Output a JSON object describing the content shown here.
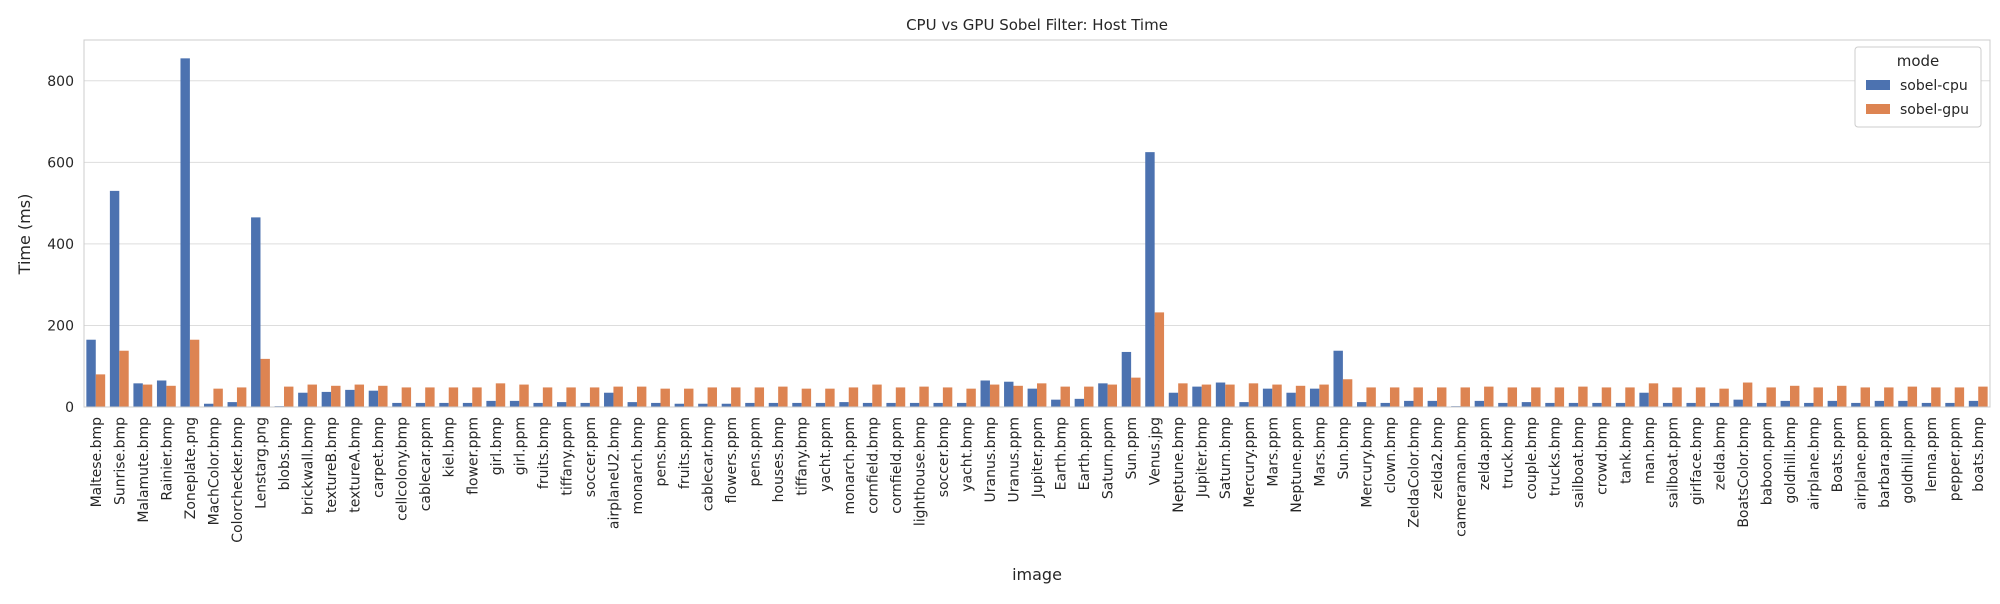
{
  "chart_data": {
    "type": "bar",
    "title": "CPU vs GPU Sobel Filter: Host Time",
    "xlabel": "image",
    "ylabel": "Time (ms)",
    "ylim": [
      0,
      900
    ],
    "yticks": [
      0,
      200,
      400,
      600,
      800
    ],
    "grid": true,
    "legend": {
      "title": "mode",
      "placement": "top-right"
    },
    "categories": [
      "Maltese.bmp",
      "Sunrise.bmp",
      "Malamute.bmp",
      "Rainier.bmp",
      "Zoneplate.png",
      "MachColor.bmp",
      "Colorchecker.bmp",
      "Lenstarg.png",
      "blobs.bmp",
      "brickwall.bmp",
      "textureB.bmp",
      "textureA.bmp",
      "carpet.bmp",
      "cellcolony.bmp",
      "cablecar.ppm",
      "kiel.bmp",
      "flower.ppm",
      "girl.bmp",
      "girl.ppm",
      "fruits.bmp",
      "tiffany.ppm",
      "soccer.ppm",
      "airplaneU2.bmp",
      "monarch.bmp",
      "pens.bmp",
      "fruits.ppm",
      "cablecar.bmp",
      "flowers.ppm",
      "pens.ppm",
      "houses.bmp",
      "tiffany.bmp",
      "yacht.ppm",
      "monarch.ppm",
      "cornfield.bmp",
      "cornfield.ppm",
      "lighthouse.bmp",
      "soccer.bmp",
      "yacht.bmp",
      "Uranus.bmp",
      "Uranus.ppm",
      "Jupiter.ppm",
      "Earth.bmp",
      "Earth.ppm",
      "Saturn.ppm",
      "Sun.ppm",
      "Venus.jpg",
      "Neptune.bmp",
      "Jupiter.bmp",
      "Saturn.bmp",
      "Mercury.ppm",
      "Mars.ppm",
      "Neptune.ppm",
      "Mars.bmp",
      "Sun.bmp",
      "Mercury.bmp",
      "clown.bmp",
      "ZeldaColor.bmp",
      "zelda2.bmp",
      "cameraman.bmp",
      "zelda.ppm",
      "truck.bmp",
      "couple.bmp",
      "trucks.bmp",
      "sailboat.bmp",
      "crowd.bmp",
      "tank.bmp",
      "man.bmp",
      "sailboat.ppm",
      "girlface.bmp",
      "zelda.bmp",
      "BoatsColor.bmp",
      "baboon.ppm",
      "goldhill.bmp",
      "airplane.bmp",
      "Boats.ppm",
      "airplane.ppm",
      "barbara.ppm",
      "goldhill.ppm",
      "lenna.ppm",
      "pepper.ppm",
      "boats.bmp"
    ],
    "series": [
      {
        "name": "sobel-cpu",
        "color": "#4c72b0",
        "values": [
          165,
          530,
          58,
          65,
          855,
          8,
          12,
          465,
          2,
          35,
          37,
          42,
          40,
          10,
          10,
          10,
          10,
          15,
          15,
          10,
          12,
          10,
          35,
          12,
          10,
          8,
          8,
          8,
          10,
          10,
          10,
          10,
          12,
          10,
          10,
          10,
          10,
          10,
          65,
          62,
          45,
          18,
          20,
          58,
          135,
          625,
          35,
          50,
          60,
          12,
          45,
          35,
          45,
          138,
          12,
          10,
          15,
          15,
          2,
          15,
          10,
          12,
          10,
          10,
          10,
          10,
          35,
          10,
          10,
          10,
          18,
          10,
          15,
          10,
          15,
          10,
          15,
          15,
          10,
          10,
          15
        ]
      },
      {
        "name": "sobel-gpu",
        "color": "#dd8452",
        "values": [
          80,
          138,
          55,
          52,
          165,
          45,
          48,
          118,
          50,
          55,
          52,
          55,
          52,
          48,
          48,
          48,
          48,
          58,
          55,
          48,
          48,
          48,
          50,
          50,
          45,
          45,
          48,
          48,
          48,
          50,
          45,
          45,
          48,
          55,
          48,
          50,
          48,
          45,
          55,
          52,
          58,
          50,
          50,
          55,
          72,
          232,
          58,
          55,
          55,
          58,
          55,
          52,
          55,
          68,
          48,
          48,
          48,
          48,
          48,
          50,
          48,
          48,
          48,
          50,
          48,
          48,
          58,
          48,
          48,
          45,
          60,
          48,
          52,
          48,
          52,
          48,
          48,
          50,
          48,
          48,
          50
        ]
      }
    ]
  }
}
